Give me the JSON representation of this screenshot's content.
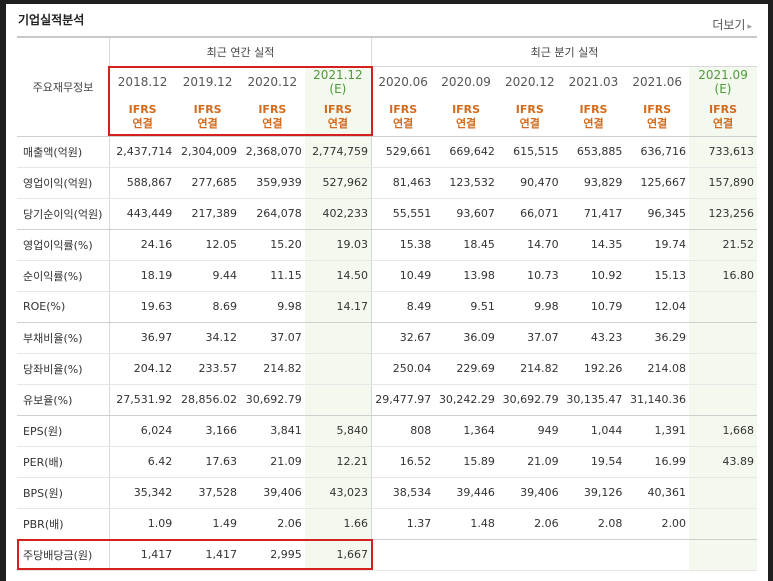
{
  "section_title": "기업실적분석",
  "more_link": "더보기",
  "header": {
    "row_label": "주요재무정보",
    "annual_group": "최근 연간 실적",
    "quarter_group": "최근 분기 실적",
    "annual_periods": [
      "2018.12",
      "2019.12",
      "2020.12",
      "2021.12"
    ],
    "annual_estimate_mark": "(E)",
    "quarter_periods": [
      "2020.06",
      "2020.09",
      "2020.12",
      "2021.03",
      "2021.06",
      "2021.09"
    ],
    "quarter_estimate_mark": "(E)",
    "basis_top": "IFRS",
    "basis_bottom": "연결"
  },
  "rows": [
    {
      "label": "매출액(억원)",
      "values": [
        "2,437,714",
        "2,304,009",
        "2,368,070",
        "2,774,759",
        "529,661",
        "669,642",
        "615,515",
        "653,885",
        "636,716",
        "733,613"
      ]
    },
    {
      "label": "영업이익(억원)",
      "values": [
        "588,867",
        "277,685",
        "359,939",
        "527,962",
        "81,463",
        "123,532",
        "90,470",
        "93,829",
        "125,667",
        "157,890"
      ]
    },
    {
      "label": "당기순이익(억원)",
      "values": [
        "443,449",
        "217,389",
        "264,078",
        "402,233",
        "55,551",
        "93,607",
        "66,071",
        "71,417",
        "96,345",
        "123,256"
      ]
    },
    {
      "label": "영업이익률(%)",
      "values": [
        "24.16",
        "12.05",
        "15.20",
        "19.03",
        "15.38",
        "18.45",
        "14.70",
        "14.35",
        "19.74",
        "21.52"
      ]
    },
    {
      "label": "순이익률(%)",
      "values": [
        "18.19",
        "9.44",
        "11.15",
        "14.50",
        "10.49",
        "13.98",
        "10.73",
        "10.92",
        "15.13",
        "16.80"
      ]
    },
    {
      "label": "ROE(%)",
      "values": [
        "19.63",
        "8.69",
        "9.98",
        "14.17",
        "8.49",
        "9.51",
        "9.98",
        "10.79",
        "12.04",
        ""
      ]
    },
    {
      "label": "부채비율(%)",
      "values": [
        "36.97",
        "34.12",
        "37.07",
        "",
        "32.67",
        "36.09",
        "37.07",
        "43.23",
        "36.29",
        ""
      ]
    },
    {
      "label": "당좌비율(%)",
      "values": [
        "204.12",
        "233.57",
        "214.82",
        "",
        "250.04",
        "229.69",
        "214.82",
        "192.26",
        "214.08",
        ""
      ]
    },
    {
      "label": "유보율(%)",
      "values": [
        "27,531.92",
        "28,856.02",
        "30,692.79",
        "",
        "29,477.97",
        "30,242.29",
        "30,692.79",
        "30,135.47",
        "31,140.36",
        ""
      ]
    },
    {
      "label": "EPS(원)",
      "values": [
        "6,024",
        "3,166",
        "3,841",
        "5,840",
        "808",
        "1,364",
        "949",
        "1,044",
        "1,391",
        "1,668"
      ]
    },
    {
      "label": "PER(배)",
      "values": [
        "6.42",
        "17.63",
        "21.09",
        "12.21",
        "16.52",
        "15.89",
        "21.09",
        "19.54",
        "16.99",
        "43.89"
      ]
    },
    {
      "label": "BPS(원)",
      "values": [
        "35,342",
        "37,528",
        "39,406",
        "43,023",
        "38,534",
        "39,446",
        "39,406",
        "39,126",
        "40,361",
        ""
      ]
    },
    {
      "label": "PBR(배)",
      "values": [
        "1.09",
        "1.49",
        "2.06",
        "1.66",
        "1.37",
        "1.48",
        "2.06",
        "2.08",
        "2.00",
        ""
      ]
    },
    {
      "label": "주당배당금(원)",
      "values": [
        "1,417",
        "1,417",
        "2,995",
        "1,667",
        "",
        "",
        "",
        "",
        "",
        ""
      ]
    }
  ],
  "highlight_color": "#d61f1f",
  "estimate_color": "#4e9a3a",
  "basis_color": "#d36b1c"
}
